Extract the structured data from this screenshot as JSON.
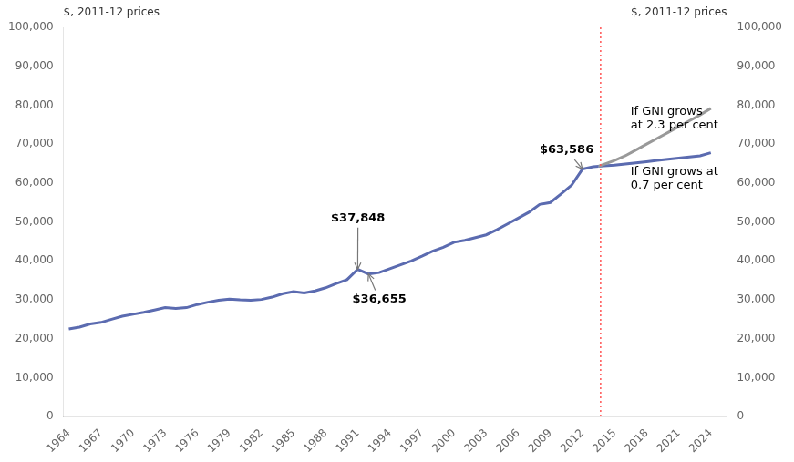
{
  "chart_data": {
    "type": "line",
    "ylabel": "$, 2011-12 prices",
    "y2label": "$, 2011-12 prices",
    "xlim": [
      1963.5,
      2025.5
    ],
    "xticks": [
      1964,
      1967,
      1970,
      1973,
      1976,
      1979,
      1982,
      1985,
      1988,
      1991,
      1994,
      1997,
      2000,
      2003,
      2006,
      2009,
      2012,
      2015,
      2018,
      2021,
      2024
    ],
    "ylim": [
      0,
      100000
    ],
    "yticks": [
      0,
      {
        "value": 10000,
        "label": "10,000"
      },
      {
        "value": 20000,
        "label": "20,000"
      },
      {
        "value": 30000,
        "label": "30,000"
      },
      {
        "value": 40000,
        "label": "40,000"
      },
      {
        "value": 50000,
        "label": "50,000"
      },
      {
        "value": 60000,
        "label": "60,000"
      },
      {
        "value": 70000,
        "label": "70,000"
      },
      {
        "value": 80000,
        "label": "80,000"
      },
      {
        "value": 90000,
        "label": "90,000"
      },
      {
        "value": 100000,
        "label": "100,000"
      }
    ],
    "y2lim": [
      0,
      100000
    ],
    "y2ticks": [
      0,
      {
        "value": 10000,
        "label": "10,000"
      },
      {
        "value": 20000,
        "label": "20,000"
      },
      {
        "value": 30000,
        "label": "30,000"
      },
      {
        "value": 40000,
        "label": "40,000"
      },
      {
        "value": 50000,
        "label": "50,000"
      },
      {
        "value": 60000,
        "label": "60,000"
      },
      {
        "value": 70000,
        "label": "70,000"
      },
      {
        "value": 80000,
        "label": "80,000"
      },
      {
        "value": 90000,
        "label": "90,000"
      },
      {
        "value": 100000,
        "label": "100,000"
      }
    ],
    "grid": false,
    "series": [
      {
        "color": "#5b6bb0",
        "x": [
          1964,
          1965,
          1966,
          1967,
          1968,
          1969,
          1970,
          1971,
          1972,
          1973,
          1974,
          1975,
          1976,
          1977,
          1978,
          1979,
          1980,
          1981,
          1982,
          1983,
          1984,
          1985,
          1986,
          1987,
          1988,
          1989,
          1990,
          1991,
          1992,
          1993,
          1994,
          1995,
          1996,
          1997,
          1998,
          1999,
          2000,
          2001,
          2002,
          2003,
          2004,
          2005,
          2006,
          2007,
          2008,
          2009,
          2010,
          2011,
          2012,
          2013,
          2013.5
        ],
        "values": [
          22500,
          23000,
          23800,
          24200,
          25000,
          25800,
          26300,
          26800,
          27400,
          28000,
          27800,
          28000,
          28800,
          29400,
          29900,
          30200,
          30000,
          29900,
          30100,
          30700,
          31600,
          32100,
          31800,
          32300,
          33100,
          34200,
          35200,
          37848,
          36655,
          37000,
          38000,
          39000,
          40000,
          41200,
          42500,
          43500,
          44800,
          45300,
          46000,
          46700,
          48000,
          49500,
          51000,
          52500,
          54500,
          55000,
          57200,
          59500,
          63586,
          64200,
          64300
        ]
      },
      {
        "color": "#999999",
        "x": [
          2013.5,
          2014,
          2015,
          2016,
          2017,
          2018,
          2019,
          2020,
          2021,
          2022,
          2023,
          2024
        ],
        "values": [
          64300,
          64800,
          65800,
          67000,
          68500,
          70000,
          71500,
          73000,
          74500,
          76000,
          77500,
          79200
        ]
      },
      {
        "color": "#5b6bb0",
        "x": [
          2013.5,
          2014,
          2015,
          2016,
          2017,
          2018,
          2019,
          2020,
          2021,
          2022,
          2023,
          2024
        ],
        "values": [
          64300,
          64400,
          64600,
          64900,
          65200,
          65500,
          65800,
          66100,
          66400,
          66700,
          67000,
          67800
        ]
      }
    ],
    "vlines": [
      {
        "x": 2013.7,
        "color": "#ff5555",
        "line_style": "dotted"
      }
    ],
    "annotations": [
      {
        "text": "$63,586",
        "x": 2008.0,
        "y": 68500,
        "arrow_x": 2012.0,
        "arrow_y": 63586,
        "color": "#777777"
      },
      {
        "text": "$37,848",
        "x": 1988.5,
        "y": 51000,
        "arrow_x": 1991.0,
        "arrow_y": 37848,
        "color": "#777777"
      },
      {
        "text": "$36,655",
        "x": 1990.5,
        "y": 30000,
        "arrow_x": 1992.0,
        "arrow_y": 36655,
        "color": "#777777"
      },
      {
        "text": "If GNI grows\nat 2.3 per cent",
        "x": 2016.5,
        "y": 76500
      },
      {
        "text": "If GNI grows at\n0.7 per cent",
        "x": 2016.5,
        "y": 61000
      }
    ]
  }
}
